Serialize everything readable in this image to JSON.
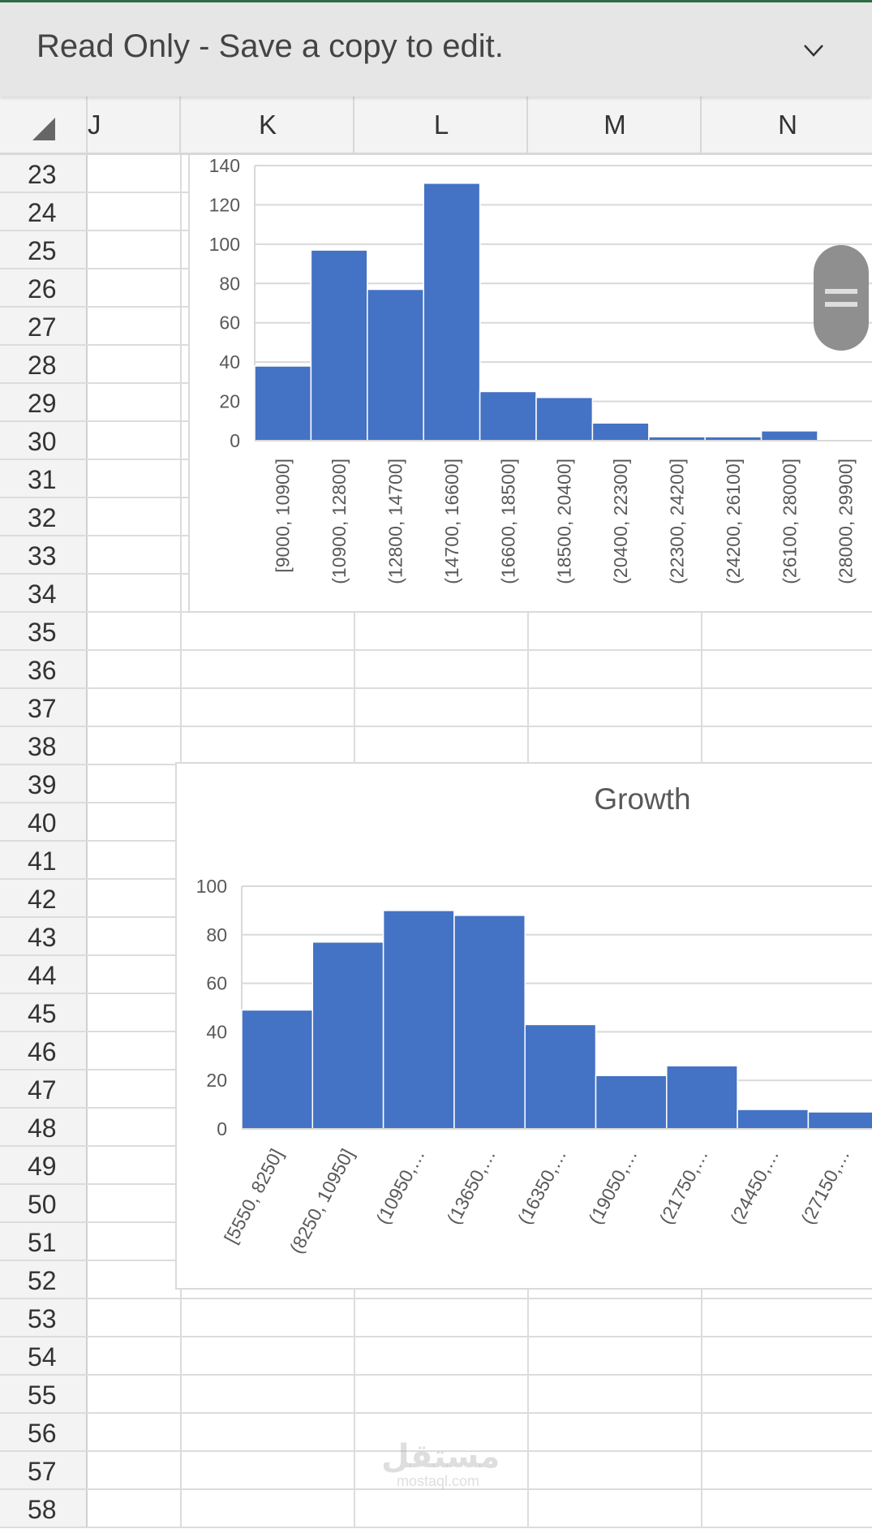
{
  "banner": {
    "text": "Read Only - Save a copy to edit.",
    "chevron_icon": "chevron-down-icon"
  },
  "columns": [
    "J",
    "K",
    "L",
    "M",
    "N"
  ],
  "rows": [
    "23",
    "24",
    "25",
    "26",
    "27",
    "28",
    "29",
    "30",
    "31",
    "32",
    "33",
    "34",
    "35",
    "36",
    "37",
    "38",
    "39",
    "40",
    "41",
    "42",
    "43",
    "44",
    "45",
    "46",
    "47",
    "48",
    "49",
    "50",
    "51",
    "52",
    "53",
    "54",
    "55",
    "56",
    "57",
    "58"
  ],
  "colors": {
    "bar": "#4472c4",
    "grid": "#d9d9d9",
    "accent": "#2e6b45"
  },
  "watermark": {
    "arabic": "مستقل",
    "latin": "mostaql.com"
  },
  "chart_data": [
    {
      "type": "bar",
      "title": "",
      "categories": [
        "[9000, 10900]",
        "(10900, 12800]",
        "(12800, 14700]",
        "(14700, 16600]",
        "(16600, 18500]",
        "(18500, 20400]",
        "(20400, 22300]",
        "(22300, 24200]",
        "(24200, 26100]",
        "(26100, 28000]",
        "(28000, 29900]"
      ],
      "values": [
        38,
        97,
        77,
        131,
        25,
        22,
        9,
        2,
        2,
        5,
        0
      ],
      "yticks": [
        "0",
        "20",
        "40",
        "60",
        "80",
        "100",
        "120",
        "140"
      ],
      "ylim": [
        0,
        140
      ],
      "grid": true
    },
    {
      "type": "bar",
      "title": "Growth",
      "categories": [
        "[5550, 8250]",
        "(8250, 10950]",
        "(10950,…",
        "(13650,…",
        "(16350,…",
        "(19050,…",
        "(21750,…",
        "(24450,…",
        "(27150,…"
      ],
      "values": [
        49,
        77,
        90,
        88,
        43,
        22,
        26,
        8,
        7
      ],
      "yticks": [
        "0",
        "20",
        "40",
        "60",
        "80",
        "100"
      ],
      "ylim": [
        0,
        100
      ],
      "grid": true
    }
  ]
}
